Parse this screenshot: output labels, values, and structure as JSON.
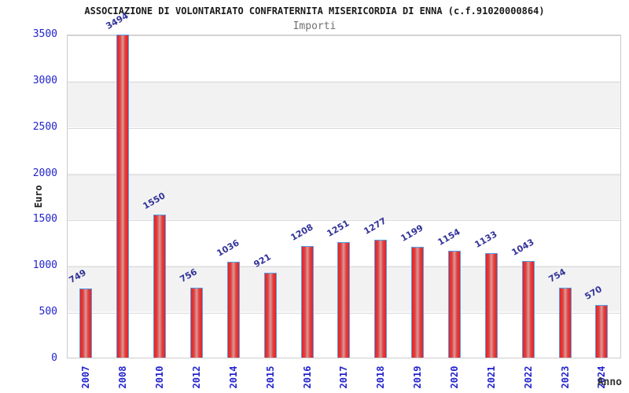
{
  "header": {
    "title": "ASSOCIAZIONE DI VOLONTARIATO CONFRATERNITA MISERICORDIA DI ENNA (c.f.91020000864)",
    "subtitle": "Importi"
  },
  "chart_data": {
    "type": "bar",
    "title": "ASSOCIAZIONE DI VOLONTARIATO CONFRATERNITA MISERICORDIA DI ENNA (c.f.91020000864)",
    "subtitle": "Importi",
    "xlabel": "Anno",
    "ylabel": "Euro",
    "categories": [
      "2007",
      "2008",
      "2010",
      "2012",
      "2014",
      "2015",
      "2016",
      "2017",
      "2018",
      "2019",
      "2020",
      "2021",
      "2022",
      "2023",
      "2024"
    ],
    "values": [
      749,
      3494,
      1550,
      756,
      1036,
      921,
      1208,
      1251,
      1277,
      1199,
      1154,
      1133,
      1043,
      754,
      570
    ],
    "ylim": [
      0,
      3500
    ],
    "yticks": [
      0,
      500,
      1000,
      1500,
      2000,
      2500,
      3000,
      3500
    ],
    "grid": "horizontal gridlines with alternating gray bands",
    "legend": "none",
    "colors": {
      "bar_fill_edge": "#e82020",
      "bar_fill_center": "#d69c9c",
      "bar_border": "#55a0e8",
      "value_label": "#333399",
      "axis_tick_label": "#2323cd",
      "band_gray": "#f2f2f2",
      "grid_line": "#d9d9d9",
      "plot_border": "#cccccc",
      "title": "#1a1a1a",
      "subtitle": "#707070"
    }
  }
}
